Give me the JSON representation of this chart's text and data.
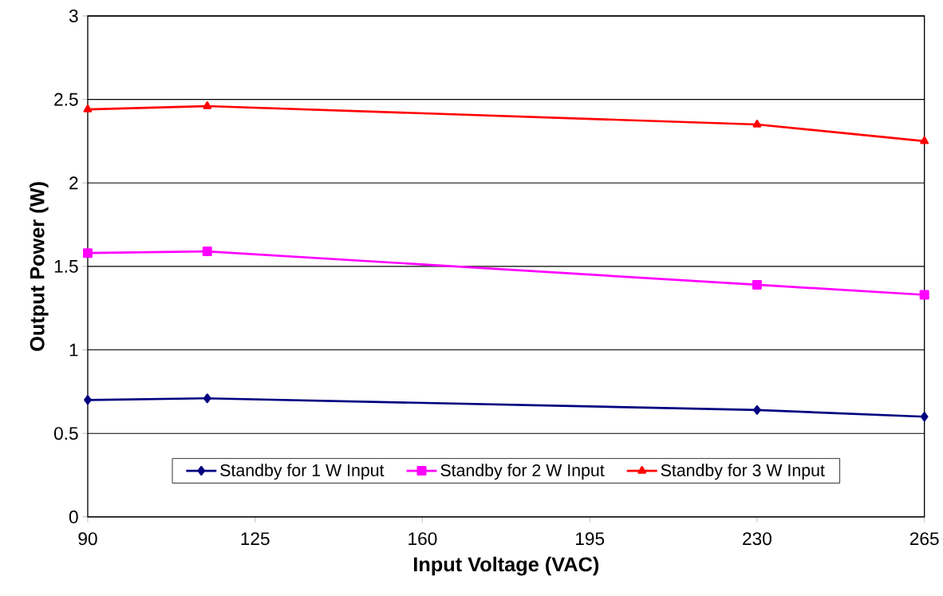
{
  "chart_data": {
    "type": "line",
    "xlabel": "Input Voltage (VAC)",
    "ylabel": "Output Power (W)",
    "x": [
      90,
      115,
      230,
      265
    ],
    "series": [
      {
        "name": "Standby for 1 W Input",
        "color": "#000080",
        "marker": "diamond",
        "values": [
          0.7,
          0.71,
          0.64,
          0.6
        ]
      },
      {
        "name": "Standby for 2 W Input",
        "color": "#ff00ff",
        "marker": "square",
        "values": [
          1.58,
          1.59,
          1.39,
          1.33
        ]
      },
      {
        "name": "Standby for 3 W Input",
        "color": "#ff0000",
        "marker": "triangle",
        "values": [
          2.44,
          2.46,
          2.35,
          2.25
        ]
      }
    ],
    "xlim": [
      90,
      265
    ],
    "xticks": [
      90,
      125,
      160,
      195,
      230,
      265
    ],
    "ylim": [
      0,
      3
    ],
    "yticks": [
      0,
      0.5,
      1,
      1.5,
      2,
      2.5,
      3
    ],
    "grid": "y",
    "legend": "bottom",
    "line_style": "solid"
  }
}
